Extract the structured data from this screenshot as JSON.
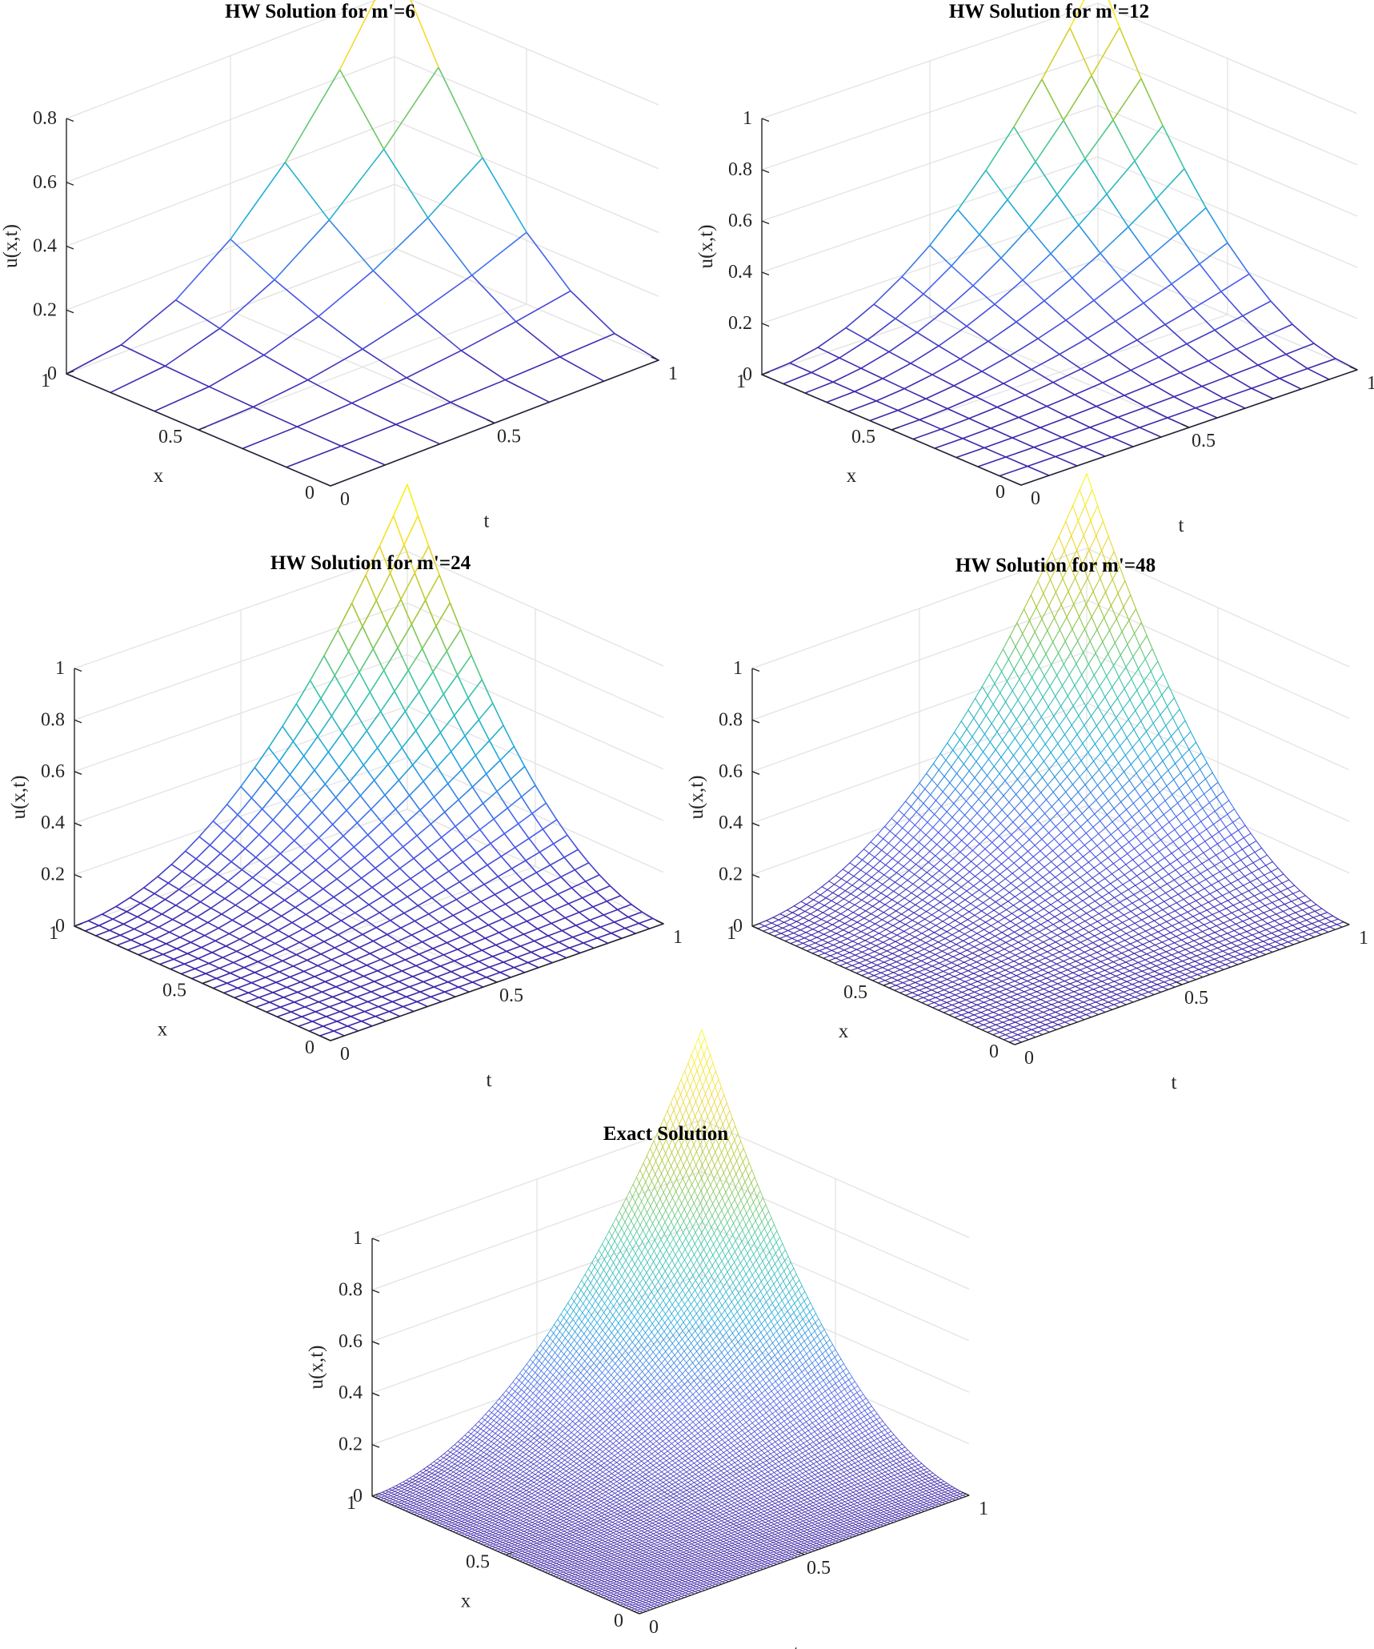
{
  "chart_data": [
    {
      "type": "surface-mesh",
      "title": "HW Solution for m'=6",
      "xlabel": "x",
      "ylabel": "t",
      "zlabel": "u(x,t)",
      "x_range": [
        0,
        1
      ],
      "t_range": [
        0,
        1
      ],
      "z_range": [
        0,
        0.8
      ],
      "x_ticks": [
        "0",
        "0.5",
        "1"
      ],
      "t_ticks": [
        "0",
        "0.5",
        "1"
      ],
      "z_ticks": [
        "0",
        "0.2",
        "0.4",
        "0.6",
        "0.8"
      ],
      "z_tick_values": [
        0,
        0.2,
        0.4,
        0.6,
        0.8
      ],
      "grid": true,
      "mesh_cells": 6,
      "peak_value": 0.9,
      "colormap": [
        "#3e26a8",
        "#4a5ff0",
        "#1fa9dc",
        "#3bc7a1",
        "#a3c635",
        "#f2d62e",
        "#f9fb15"
      ]
    },
    {
      "type": "surface-mesh",
      "title": "HW Solution for m'=12",
      "xlabel": "x",
      "ylabel": "t",
      "zlabel": "u(x,t)",
      "x_range": [
        0,
        1
      ],
      "t_range": [
        0,
        1
      ],
      "z_range": [
        0,
        1
      ],
      "x_ticks": [
        "0",
        "0.5",
        "1"
      ],
      "t_ticks": [
        "0",
        "0.5",
        "1"
      ],
      "z_ticks": [
        "0",
        "0.2",
        "0.4",
        "0.6",
        "0.8",
        "1"
      ],
      "z_tick_values": [
        0,
        0.2,
        0.4,
        0.6,
        0.8,
        1
      ],
      "grid": true,
      "mesh_cells": 12,
      "peak_value": 1.12,
      "colormap": [
        "#3e26a8",
        "#4a5ff0",
        "#1fa9dc",
        "#3bc7a1",
        "#a3c635",
        "#f2d62e",
        "#f9fb15"
      ]
    },
    {
      "type": "surface-mesh",
      "title": "HW Solution for m'=24",
      "xlabel": "x",
      "ylabel": "t",
      "zlabel": "u(x,t)",
      "x_range": [
        0,
        1
      ],
      "t_range": [
        0,
        1
      ],
      "z_range": [
        0,
        1
      ],
      "x_ticks": [
        "0",
        "0.5",
        "1"
      ],
      "t_ticks": [
        "0",
        "0.5",
        "1"
      ],
      "z_ticks": [
        "0",
        "0.2",
        "0.4",
        "0.6",
        "0.8",
        "1"
      ],
      "z_tick_values": [
        0,
        0.2,
        0.4,
        0.6,
        0.8,
        1
      ],
      "grid": true,
      "mesh_cells": 24,
      "peak_value": 1.26,
      "colormap": [
        "#3e26a8",
        "#4a5ff0",
        "#1fa9dc",
        "#3bc7a1",
        "#a3c635",
        "#f2d62e",
        "#f9fb15"
      ]
    },
    {
      "type": "surface-mesh",
      "title": "HW Solution for m'=48",
      "xlabel": "x",
      "ylabel": "t",
      "zlabel": "u(x,t)",
      "x_range": [
        0,
        1
      ],
      "t_range": [
        0,
        1
      ],
      "z_range": [
        0,
        1
      ],
      "x_ticks": [
        "0",
        "0.5",
        "1"
      ],
      "t_ticks": [
        "0",
        "0.5",
        "1"
      ],
      "z_ticks": [
        "0",
        "0.2",
        "0.4",
        "0.6",
        "0.8",
        "1"
      ],
      "z_tick_values": [
        0,
        0.2,
        0.4,
        0.6,
        0.8,
        1
      ],
      "grid": true,
      "mesh_cells": 48,
      "peak_value": 1.29,
      "colormap": [
        "#3e26a8",
        "#4a5ff0",
        "#1fa9dc",
        "#3bc7a1",
        "#a3c635",
        "#f2d62e",
        "#f9fb15"
      ]
    },
    {
      "type": "surface-mesh",
      "title": "Exact Solution",
      "xlabel": "x",
      "ylabel": "t",
      "zlabel": "u(x,t)",
      "x_range": [
        0,
        1
      ],
      "t_range": [
        0,
        1
      ],
      "z_range": [
        0,
        1
      ],
      "x_ticks": [
        "0",
        "0.5",
        "1"
      ],
      "t_ticks": [
        "0",
        "0.5",
        "1"
      ],
      "z_ticks": [
        "0",
        "0.2",
        "0.4",
        "0.6",
        "0.8",
        "1"
      ],
      "z_tick_values": [
        0,
        0.2,
        0.4,
        0.6,
        0.8,
        1
      ],
      "grid": true,
      "mesh_cells": 96,
      "peak_value": 1.35,
      "colormap": [
        "#3e26a8",
        "#4a5ff0",
        "#1fa9dc",
        "#3bc7a1",
        "#a3c635",
        "#f2d62e",
        "#f9fb15"
      ]
    }
  ]
}
